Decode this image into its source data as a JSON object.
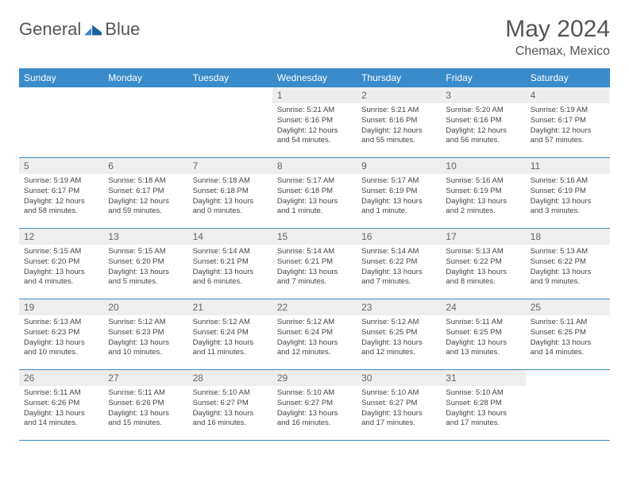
{
  "logo": {
    "text1": "General",
    "text2": "Blue"
  },
  "title": "May 2024",
  "location": "Chemax, Mexico",
  "colors": {
    "header_bg": "#3a8bc9",
    "header_text": "#ffffff",
    "daynum_bg": "#eeeeee",
    "text": "#555555",
    "border": "#3a8bc9"
  },
  "weekdays": [
    "Sunday",
    "Monday",
    "Tuesday",
    "Wednesday",
    "Thursday",
    "Friday",
    "Saturday"
  ],
  "weeks": [
    [
      null,
      null,
      null,
      {
        "n": "1",
        "sr": "5:21 AM",
        "ss": "6:16 PM",
        "dl": "12 hours and 54 minutes."
      },
      {
        "n": "2",
        "sr": "5:21 AM",
        "ss": "6:16 PM",
        "dl": "12 hours and 55 minutes."
      },
      {
        "n": "3",
        "sr": "5:20 AM",
        "ss": "6:16 PM",
        "dl": "12 hours and 56 minutes."
      },
      {
        "n": "4",
        "sr": "5:19 AM",
        "ss": "6:17 PM",
        "dl": "12 hours and 57 minutes."
      }
    ],
    [
      {
        "n": "5",
        "sr": "5:19 AM",
        "ss": "6:17 PM",
        "dl": "12 hours and 58 minutes."
      },
      {
        "n": "6",
        "sr": "5:18 AM",
        "ss": "6:17 PM",
        "dl": "12 hours and 59 minutes."
      },
      {
        "n": "7",
        "sr": "5:18 AM",
        "ss": "6:18 PM",
        "dl": "13 hours and 0 minutes."
      },
      {
        "n": "8",
        "sr": "5:17 AM",
        "ss": "6:18 PM",
        "dl": "13 hours and 1 minute."
      },
      {
        "n": "9",
        "sr": "5:17 AM",
        "ss": "6:19 PM",
        "dl": "13 hours and 1 minute."
      },
      {
        "n": "10",
        "sr": "5:16 AM",
        "ss": "6:19 PM",
        "dl": "13 hours and 2 minutes."
      },
      {
        "n": "11",
        "sr": "5:16 AM",
        "ss": "6:19 PM",
        "dl": "13 hours and 3 minutes."
      }
    ],
    [
      {
        "n": "12",
        "sr": "5:15 AM",
        "ss": "6:20 PM",
        "dl": "13 hours and 4 minutes."
      },
      {
        "n": "13",
        "sr": "5:15 AM",
        "ss": "6:20 PM",
        "dl": "13 hours and 5 minutes."
      },
      {
        "n": "14",
        "sr": "5:14 AM",
        "ss": "6:21 PM",
        "dl": "13 hours and 6 minutes."
      },
      {
        "n": "15",
        "sr": "5:14 AM",
        "ss": "6:21 PM",
        "dl": "13 hours and 7 minutes."
      },
      {
        "n": "16",
        "sr": "5:14 AM",
        "ss": "6:22 PM",
        "dl": "13 hours and 7 minutes."
      },
      {
        "n": "17",
        "sr": "5:13 AM",
        "ss": "6:22 PM",
        "dl": "13 hours and 8 minutes."
      },
      {
        "n": "18",
        "sr": "5:13 AM",
        "ss": "6:22 PM",
        "dl": "13 hours and 9 minutes."
      }
    ],
    [
      {
        "n": "19",
        "sr": "5:13 AM",
        "ss": "6:23 PM",
        "dl": "13 hours and 10 minutes."
      },
      {
        "n": "20",
        "sr": "5:12 AM",
        "ss": "6:23 PM",
        "dl": "13 hours and 10 minutes."
      },
      {
        "n": "21",
        "sr": "5:12 AM",
        "ss": "6:24 PM",
        "dl": "13 hours and 11 minutes."
      },
      {
        "n": "22",
        "sr": "5:12 AM",
        "ss": "6:24 PM",
        "dl": "13 hours and 12 minutes."
      },
      {
        "n": "23",
        "sr": "5:12 AM",
        "ss": "6:25 PM",
        "dl": "13 hours and 12 minutes."
      },
      {
        "n": "24",
        "sr": "5:11 AM",
        "ss": "6:25 PM",
        "dl": "13 hours and 13 minutes."
      },
      {
        "n": "25",
        "sr": "5:11 AM",
        "ss": "6:25 PM",
        "dl": "13 hours and 14 minutes."
      }
    ],
    [
      {
        "n": "26",
        "sr": "5:11 AM",
        "ss": "6:26 PM",
        "dl": "13 hours and 14 minutes."
      },
      {
        "n": "27",
        "sr": "5:11 AM",
        "ss": "6:26 PM",
        "dl": "13 hours and 15 minutes."
      },
      {
        "n": "28",
        "sr": "5:10 AM",
        "ss": "6:27 PM",
        "dl": "13 hours and 16 minutes."
      },
      {
        "n": "29",
        "sr": "5:10 AM",
        "ss": "6:27 PM",
        "dl": "13 hours and 16 minutes."
      },
      {
        "n": "30",
        "sr": "5:10 AM",
        "ss": "6:27 PM",
        "dl": "13 hours and 17 minutes."
      },
      {
        "n": "31",
        "sr": "5:10 AM",
        "ss": "6:28 PM",
        "dl": "13 hours and 17 minutes."
      },
      null
    ]
  ],
  "labels": {
    "sunrise": "Sunrise:",
    "sunset": "Sunset:",
    "daylight": "Daylight:"
  }
}
